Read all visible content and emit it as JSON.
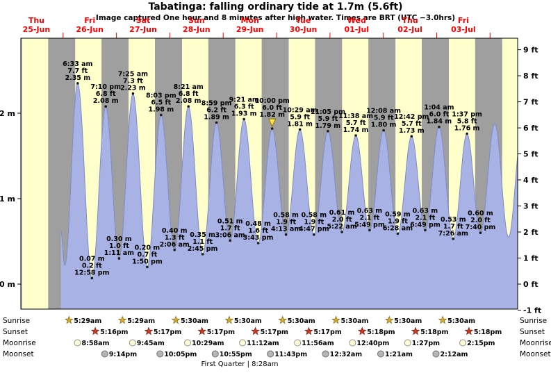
{
  "title": "Tabatinga: falling  ordinary tide at 1.7m (5.6ft)",
  "subtitle": "Image captured One hour and 8 minutes after high water. Times are BRT (UTC −3.0hrs)",
  "colors": {
    "day_band": "#ffffcc",
    "night_band": "#9f9f9f",
    "tide_fill": "#a8b2e4",
    "tide_edge": "#7c8cc8",
    "day_label": "#ff0000",
    "current_arrow": "#ffe24b",
    "sunrise_star": "#d4af37",
    "sunset_star": "#cf3a28",
    "moonrise_disc": "#ffffd6",
    "moonset_disc": "#b5b5b5"
  },
  "chart_data": {
    "type": "area",
    "title": "Tabatinga tide height curve",
    "grid": false,
    "x_axis": {
      "unit": "hours from Thu 25-Jun 00:00 (BRT)",
      "range": [
        5.0,
        228.4
      ]
    },
    "y_axis_left": {
      "unit": "m",
      "ticks": [
        0,
        1,
        2
      ],
      "range": [
        -0.29,
        2.88
      ]
    },
    "y_axis_right": {
      "unit": "ft",
      "ticks": [
        -1,
        0,
        1,
        2,
        3,
        4,
        5,
        6,
        7,
        8,
        9
      ]
    },
    "days": [
      {
        "name": "Thu",
        "date": "25-Jun",
        "noon_t": 12
      },
      {
        "name": "Fri",
        "date": "26-Jun",
        "noon_t": 36
      },
      {
        "name": "Sat",
        "date": "27-Jun",
        "noon_t": 60
      },
      {
        "name": "Sun",
        "date": "28-Jun",
        "noon_t": 84
      },
      {
        "name": "Mon",
        "date": "29-Jun",
        "noon_t": 108
      },
      {
        "name": "Tue",
        "date": "30-Jun",
        "noon_t": 132
      },
      {
        "name": "Wed",
        "date": "01-Jul",
        "noon_t": 156
      },
      {
        "name": "Thu",
        "date": "02-Jul",
        "noon_t": 180
      },
      {
        "name": "Fri",
        "date": "03-Jul",
        "noon_t": 204
      }
    ],
    "tide_events": [
      {
        "type": "high",
        "time": "6:33 am",
        "ft": 7.7,
        "m": 2.35,
        "t": 30.55
      },
      {
        "type": "low",
        "time": "12:58 pm",
        "ft": 0.2,
        "m": 0.07,
        "t": 36.97
      },
      {
        "type": "high",
        "time": "7:10 pm",
        "ft": 6.8,
        "m": 2.08,
        "t": 43.17
      },
      {
        "type": "low",
        "time": "1:11 am",
        "ft": 1.0,
        "m": 0.3,
        "t": 49.18
      },
      {
        "type": "high",
        "time": "7:25 am",
        "ft": 7.3,
        "m": 2.23,
        "t": 55.42
      },
      {
        "type": "low",
        "time": "1:50 pm",
        "ft": 0.7,
        "m": 0.2,
        "t": 61.83
      },
      {
        "type": "high",
        "time": "8:03 pm",
        "ft": 6.5,
        "m": 1.98,
        "t": 68.05
      },
      {
        "type": "low",
        "time": "2:06 am",
        "ft": 1.3,
        "m": 0.4,
        "t": 74.1
      },
      {
        "type": "high",
        "time": "8:21 am",
        "ft": 6.8,
        "m": 2.08,
        "t": 80.35
      },
      {
        "type": "low",
        "time": "2:45 pm",
        "ft": 1.1,
        "m": 0.35,
        "t": 86.75
      },
      {
        "type": "high",
        "time": "8:59 pm",
        "ft": 6.2,
        "m": 1.89,
        "t": 92.98
      },
      {
        "type": "low",
        "time": "3:06 am",
        "ft": 1.7,
        "m": 0.51,
        "t": 99.1
      },
      {
        "type": "high",
        "time": "9:21 am",
        "ft": 6.3,
        "m": 1.93,
        "t": 105.35
      },
      {
        "type": "low",
        "time": "3:43 pm",
        "ft": 1.6,
        "m": 0.48,
        "t": 111.72
      },
      {
        "type": "high",
        "time": "10:00 pm",
        "ft": 6.0,
        "m": 1.82,
        "t": 118.0,
        "current": true
      },
      {
        "type": "low",
        "time": "4:13 am",
        "ft": 1.9,
        "m": 0.58,
        "t": 124.22
      },
      {
        "type": "high",
        "time": "10:29 am",
        "ft": 5.9,
        "m": 1.81,
        "t": 130.48
      },
      {
        "type": "low",
        "time": "4:47 pm",
        "ft": 1.9,
        "m": 0.58,
        "t": 136.78
      },
      {
        "type": "high",
        "time": "11:05 pm",
        "ft": 5.9,
        "m": 1.79,
        "t": 143.08
      },
      {
        "type": "low",
        "time": "5:22 am",
        "ft": 2.0,
        "m": 0.61,
        "t": 149.37
      },
      {
        "type": "high",
        "time": "11:38 am",
        "ft": 5.7,
        "m": 1.74,
        "t": 155.63
      },
      {
        "type": "low",
        "time": "5:49 pm",
        "ft": 2.1,
        "m": 0.63,
        "t": 161.82
      },
      {
        "type": "high",
        "time": "12:08 am",
        "ft": 5.9,
        "m": 1.8,
        "t": 168.13
      },
      {
        "type": "low",
        "time": "6:28 am",
        "ft": 1.9,
        "m": 0.59,
        "t": 174.47
      },
      {
        "type": "high",
        "time": "12:42 pm",
        "ft": 5.7,
        "m": 1.73,
        "t": 180.7
      },
      {
        "type": "low",
        "time": "6:49 pm",
        "ft": 2.1,
        "m": 0.63,
        "t": 186.82
      },
      {
        "type": "high",
        "time": "1:04 am",
        "ft": 6.0,
        "m": 1.84,
        "t": 193.07
      },
      {
        "type": "low",
        "time": "7:26 am",
        "ft": 1.7,
        "m": 0.53,
        "t": 199.43
      },
      {
        "type": "high",
        "time": "1:37 pm",
        "ft": 5.8,
        "m": 1.76,
        "t": 205.62
      },
      {
        "type": "low",
        "time": "7:40 pm",
        "ft": 2.0,
        "m": 0.6,
        "t": 211.67
      }
    ],
    "curve_extension": {
      "note": "unlabeled curve continuation read from the chart edges",
      "before": [
        {
          "t": 23.0,
          "m": 0.62
        },
        {
          "t": 24.75,
          "m": 0.22
        }
      ],
      "after": [
        {
          "t": 218.1,
          "m": 1.88
        },
        {
          "t": 224.3,
          "m": 0.55
        },
        {
          "t": 230.5,
          "m": 1.85
        }
      ]
    },
    "daylight": {
      "sunrise_hour": 5.49,
      "sunset_hour": 17.29
    }
  },
  "almanac": {
    "moon_phase": "First Quarter | 8:28am",
    "rows": [
      {
        "label": "Sunrise",
        "icon": "sunrise-star",
        "entries": [
          {
            "time": "5:29am",
            "t": 29.48
          },
          {
            "time": "5:29am",
            "t": 53.48
          },
          {
            "time": "5:30am",
            "t": 77.5
          },
          {
            "time": "5:30am",
            "t": 101.5
          },
          {
            "time": "5:30am",
            "t": 125.5
          },
          {
            "time": "5:30am",
            "t": 149.5
          },
          {
            "time": "5:30am",
            "t": 173.5
          },
          {
            "time": "5:30am",
            "t": 197.5
          }
        ]
      },
      {
        "label": "Sunset",
        "icon": "sunset-star",
        "entries": [
          {
            "time": "5:16pm",
            "t": 41.27
          },
          {
            "time": "5:17pm",
            "t": 65.28
          },
          {
            "time": "5:17pm",
            "t": 89.28
          },
          {
            "time": "5:17pm",
            "t": 113.28
          },
          {
            "time": "5:17pm",
            "t": 137.28
          },
          {
            "time": "5:18pm",
            "t": 161.3
          },
          {
            "time": "5:18pm",
            "t": 185.3
          },
          {
            "time": "5:18pm",
            "t": 209.3
          }
        ]
      },
      {
        "label": "Moonrise",
        "icon": "moonrise-disc",
        "entries": [
          {
            "time": "8:58am",
            "t": 32.97
          },
          {
            "time": "9:45am",
            "t": 57.75
          },
          {
            "time": "10:29am",
            "t": 82.48
          },
          {
            "time": "11:12am",
            "t": 107.2
          },
          {
            "time": "11:56am",
            "t": 131.93
          },
          {
            "time": "12:40pm",
            "t": 156.67
          },
          {
            "time": "1:27pm",
            "t": 181.45
          },
          {
            "time": "2:15pm",
            "t": 206.25
          }
        ]
      },
      {
        "label": "Moonset",
        "icon": "moonset-disc",
        "entries": [
          {
            "time": "9:14pm",
            "t": 45.23
          },
          {
            "time": "10:05pm",
            "t": 70.08
          },
          {
            "time": "10:55pm",
            "t": 94.92
          },
          {
            "time": "11:43pm",
            "t": 119.72
          },
          {
            "time": "12:32am",
            "t": 144.53
          },
          {
            "time": "1:21am",
            "t": 169.35
          },
          {
            "time": "2:12am",
            "t": 194.2
          }
        ]
      }
    ]
  }
}
